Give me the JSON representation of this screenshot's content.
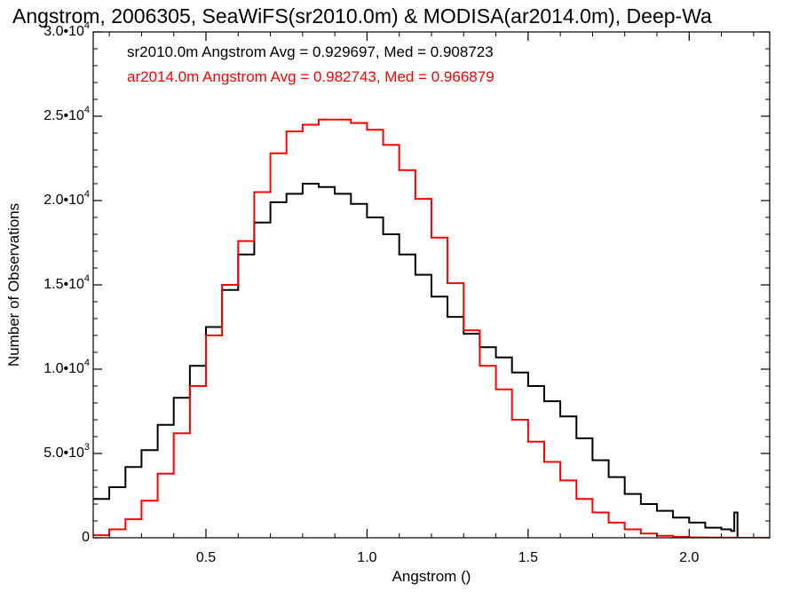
{
  "chart_data": {
    "type": "line",
    "title": "Angstrom, 2006305, SeaWiFS(sr2010.0m) & MODISA(ar2014.0m), Deep-Wa",
    "xlabel": "Angstrom ()",
    "ylabel": "Number of Observations",
    "xlim": [
      0.15,
      2.25
    ],
    "ylim": [
      0,
      30000
    ],
    "x_ticks": [
      {
        "value": 0.5,
        "label": "0.5"
      },
      {
        "value": 1.0,
        "label": "1.0"
      },
      {
        "value": 1.5,
        "label": "1.5"
      },
      {
        "value": 2.0,
        "label": "2.0"
      }
    ],
    "y_ticks": [
      {
        "value": 0,
        "mant": "0",
        "exp": ""
      },
      {
        "value": 5000,
        "mant": "5.0•10",
        "exp": "3"
      },
      {
        "value": 10000,
        "mant": "1.0•10",
        "exp": "4"
      },
      {
        "value": 15000,
        "mant": "1.5•10",
        "exp": "4"
      },
      {
        "value": 20000,
        "mant": "2.0•10",
        "exp": "4"
      },
      {
        "value": 25000,
        "mant": "2.5•10",
        "exp": "4"
      },
      {
        "value": 30000,
        "mant": "3.0•10",
        "exp": "4"
      }
    ],
    "legend": [
      {
        "text": "sr2010.0m Angstrom Avg = 0.929697, Med = 0.908723",
        "color": "#000000"
      },
      {
        "text": "ar2014.0m Angstrom Avg = 0.982743, Med = 0.966879",
        "color": "#ff0000"
      }
    ],
    "legend_position": "top-left",
    "series": [
      {
        "color": "#000000",
        "x": [
          0.15,
          0.2,
          0.25,
          0.3,
          0.35,
          0.4,
          0.45,
          0.5,
          0.55,
          0.6,
          0.65,
          0.7,
          0.75,
          0.8,
          0.85,
          0.9,
          0.95,
          1.0,
          1.05,
          1.1,
          1.15,
          1.2,
          1.25,
          1.3,
          1.35,
          1.4,
          1.45,
          1.5,
          1.55,
          1.6,
          1.65,
          1.7,
          1.75,
          1.8,
          1.85,
          1.9,
          1.95,
          2.0,
          2.05,
          2.1,
          2.13,
          2.14,
          2.15,
          2.16,
          2.2,
          2.25
        ],
        "y": [
          2300,
          3000,
          4200,
          5200,
          6700,
          8300,
          10200,
          12500,
          14700,
          16800,
          18700,
          19900,
          20400,
          21000,
          20800,
          20400,
          19800,
          19000,
          18000,
          16800,
          15600,
          14300,
          13100,
          12100,
          11300,
          10700,
          9800,
          9000,
          8100,
          7200,
          5900,
          4600,
          3600,
          2600,
          2000,
          1600,
          1200,
          900,
          600,
          500,
          400,
          1500,
          0,
          0,
          0,
          0
        ]
      },
      {
        "color": "#ff0000",
        "x": [
          0.15,
          0.2,
          0.25,
          0.3,
          0.35,
          0.4,
          0.45,
          0.5,
          0.55,
          0.6,
          0.65,
          0.7,
          0.75,
          0.8,
          0.85,
          0.9,
          0.95,
          1.0,
          1.05,
          1.1,
          1.15,
          1.2,
          1.25,
          1.3,
          1.35,
          1.4,
          1.45,
          1.5,
          1.55,
          1.6,
          1.65,
          1.7,
          1.75,
          1.8,
          1.85,
          1.9,
          1.95,
          2.0,
          2.05,
          2.1,
          2.15,
          2.2,
          2.25
        ],
        "y": [
          150,
          500,
          1100,
          2200,
          3800,
          6200,
          9000,
          12000,
          15000,
          17600,
          20500,
          22800,
          24100,
          24500,
          24800,
          24800,
          24600,
          24200,
          23300,
          21800,
          20100,
          17800,
          15100,
          12300,
          10200,
          8800,
          7000,
          5700,
          4500,
          3400,
          2300,
          1500,
          900,
          500,
          250,
          120,
          60,
          20,
          10,
          5,
          0,
          0,
          0
        ]
      }
    ],
    "grid": false
  }
}
